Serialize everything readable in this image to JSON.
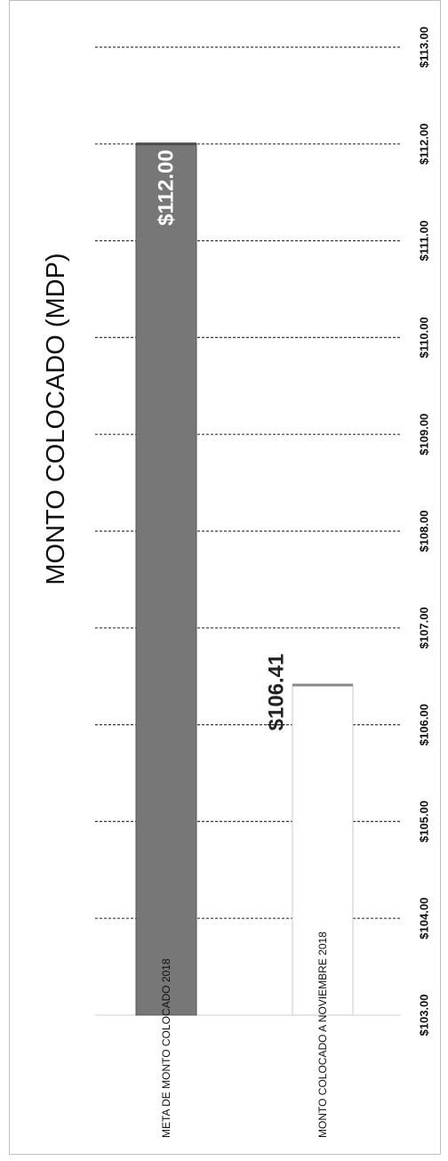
{
  "chart_data": {
    "type": "bar",
    "orientation": "horizontal",
    "rotation": "rotated-90-ccw",
    "title": "MONTO COLOCADO (MDP)",
    "categories": [
      "META DE MONTO COLOCADO 2018",
      "MONTO COLOCADO A NOVIEMBRE 2018"
    ],
    "values": [
      112.0,
      106.41
    ],
    "data_labels": [
      "$112.00",
      "$106.41"
    ],
    "xlim": [
      103,
      113
    ],
    "ticks": [
      103,
      104,
      105,
      106,
      107,
      108,
      109,
      110,
      111,
      112,
      113
    ],
    "tick_labels": [
      "$103.00",
      "$104.00",
      "$105.00",
      "$106.00",
      "$107.00",
      "$108.00",
      "$109.00",
      "$110.00",
      "$111.00",
      "$112.00",
      "$113.00"
    ],
    "grid": true,
    "grid_style": "dashed",
    "bar_colors": [
      "#777777",
      "#ffffff"
    ],
    "data_label_colors": [
      "#ffffff",
      "#222222"
    ],
    "legend": "none"
  }
}
